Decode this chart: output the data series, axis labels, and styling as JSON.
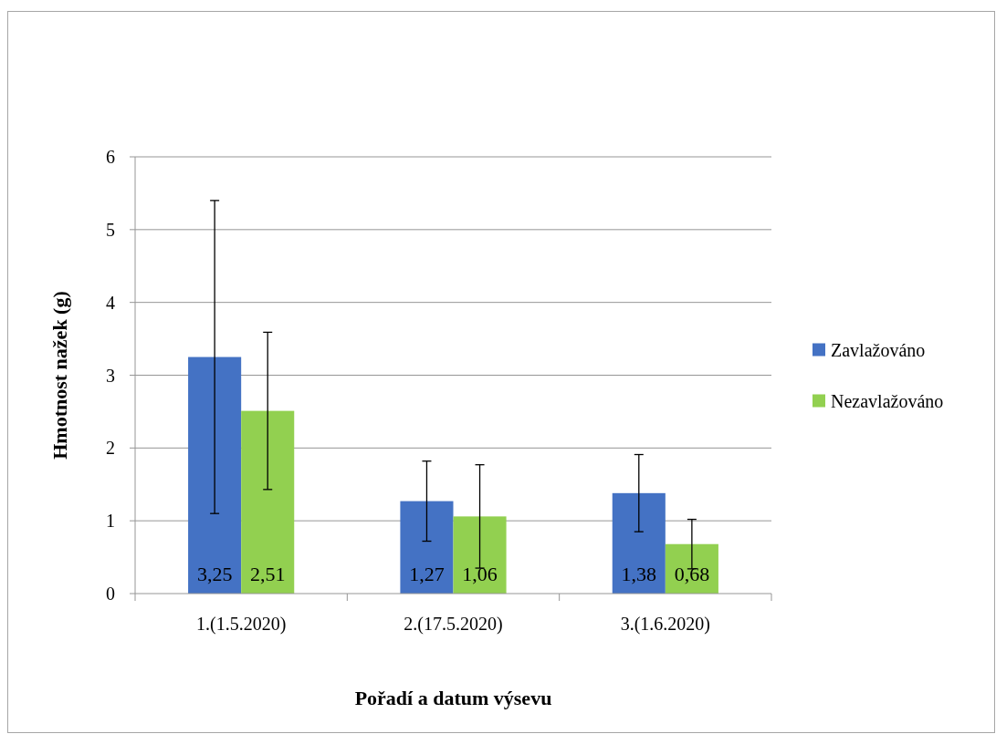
{
  "chart_data": {
    "type": "bar",
    "xlabel": "Pořadí a datum výsevu",
    "ylabel": "Hmotnost nažek (g)",
    "categories": [
      "1.(1.5.2020)",
      "2.(17.5.2020)",
      "3.(1.6.2020)"
    ],
    "series": [
      {
        "name": "Zavlažováno",
        "color": "#4472c4",
        "values": [
          3.25,
          1.27,
          1.38
        ],
        "value_labels": [
          "3,25",
          "1,27",
          "1,38"
        ],
        "errors": [
          2.15,
          0.55,
          0.53
        ]
      },
      {
        "name": "Nezavlažováno",
        "color": "#92d050",
        "values": [
          2.51,
          1.06,
          0.68
        ],
        "value_labels": [
          "2,51",
          "1,06",
          "0,68"
        ],
        "errors": [
          1.08,
          0.71,
          0.34
        ]
      }
    ],
    "ylim": [
      0,
      6
    ],
    "yticks": [
      0,
      1,
      2,
      3,
      4,
      5,
      6
    ],
    "grid": "y",
    "legend": "right"
  }
}
